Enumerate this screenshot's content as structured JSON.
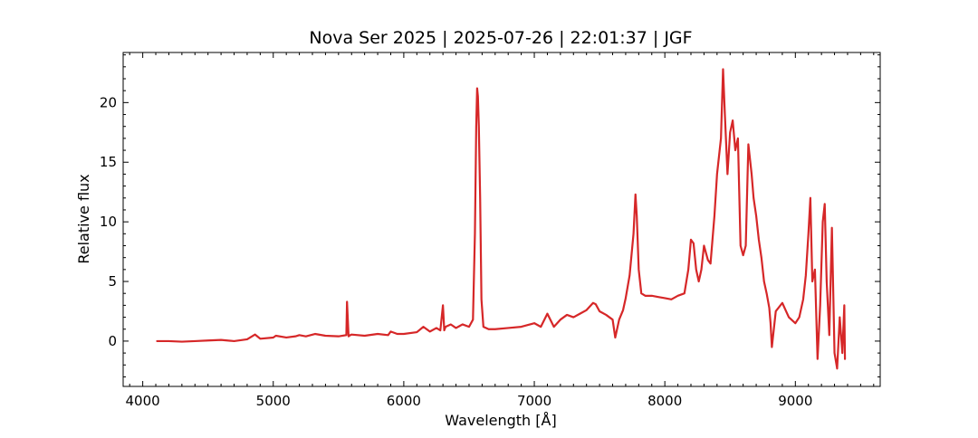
{
  "chart_data": {
    "type": "line",
    "title": "Nova Ser 2025 | 2025-07-26 | 22:01:37 | JGF",
    "xlabel": "Wavelength [Å]",
    "ylabel": "Relative flux",
    "xlim": [
      3850,
      9650
    ],
    "ylim": [
      -3.8,
      24.2
    ],
    "xticks": [
      4000,
      5000,
      6000,
      7000,
      8000,
      9000
    ],
    "yticks": [
      0,
      5,
      10,
      15,
      20
    ],
    "xtick_labels": [
      "4000",
      "5000",
      "6000",
      "7000",
      "8000",
      "9000"
    ],
    "ytick_labels": [
      "0",
      "5",
      "10",
      "15",
      "20"
    ],
    "grid": false,
    "series": [
      {
        "color": "#d62728",
        "x": [
          4110,
          4200,
          4300,
          4400,
          4500,
          4600,
          4700,
          4800,
          4860,
          4900,
          5000,
          5020,
          5100,
          5170,
          5200,
          5250,
          5320,
          5400,
          5500,
          5560,
          5565,
          5577,
          5590,
          5600,
          5700,
          5800,
          5880,
          5900,
          5950,
          6000,
          6100,
          6150,
          6200,
          6250,
          6280,
          6300,
          6310,
          6320,
          6360,
          6400,
          6450,
          6500,
          6530,
          6545,
          6555,
          6562,
          6568,
          6575,
          6585,
          6595,
          6610,
          6650,
          6700,
          6800,
          6900,
          7000,
          7050,
          7100,
          7150,
          7200,
          7250,
          7300,
          7350,
          7400,
          7450,
          7470,
          7500,
          7550,
          7600,
          7620,
          7650,
          7680,
          7700,
          7730,
          7760,
          7775,
          7785,
          7800,
          7820,
          7850,
          7900,
          7950,
          8000,
          8050,
          8100,
          8150,
          8180,
          8200,
          8220,
          8240,
          8260,
          8280,
          8300,
          8330,
          8350,
          8380,
          8400,
          8430,
          8446,
          8460,
          8480,
          8500,
          8520,
          8540,
          8560,
          8580,
          8600,
          8620,
          8640,
          8665,
          8680,
          8700,
          8720,
          8740,
          8760,
          8780,
          8800,
          8810,
          8820,
          8850,
          8900,
          8950,
          9000,
          9030,
          9060,
          9080,
          9100,
          9115,
          9130,
          9150,
          9170,
          9190,
          9210,
          9225,
          9240,
          9260,
          9280,
          9300,
          9320,
          9340,
          9360,
          9375,
          9380
        ],
        "y": [
          0.0,
          0.0,
          -0.05,
          0.0,
          0.05,
          0.1,
          0.0,
          0.15,
          0.55,
          0.2,
          0.3,
          0.45,
          0.3,
          0.4,
          0.5,
          0.4,
          0.6,
          0.45,
          0.4,
          0.5,
          3.3,
          0.4,
          0.5,
          0.55,
          0.45,
          0.6,
          0.5,
          0.8,
          0.6,
          0.6,
          0.75,
          1.2,
          0.8,
          1.1,
          0.9,
          3.0,
          0.9,
          1.2,
          1.4,
          1.1,
          1.4,
          1.2,
          1.8,
          9.0,
          18.0,
          21.2,
          20.5,
          18.0,
          12.0,
          3.5,
          1.2,
          1.0,
          1.0,
          1.1,
          1.2,
          1.5,
          1.2,
          2.3,
          1.2,
          1.8,
          2.2,
          2.0,
          2.3,
          2.6,
          3.2,
          3.1,
          2.5,
          2.2,
          1.8,
          0.3,
          1.8,
          2.6,
          3.6,
          5.5,
          9.0,
          12.3,
          10.5,
          6.0,
          4.0,
          3.8,
          3.8,
          3.7,
          3.6,
          3.5,
          3.8,
          4.0,
          6.0,
          8.5,
          8.2,
          6.0,
          5.0,
          6.0,
          8.0,
          6.8,
          6.5,
          10.5,
          14.0,
          17.0,
          22.8,
          19.0,
          14.0,
          17.5,
          18.5,
          16.0,
          17.0,
          8.0,
          7.2,
          8.0,
          16.5,
          14.0,
          12.0,
          10.5,
          8.5,
          7.0,
          5.0,
          4.0,
          2.8,
          1.5,
          -0.5,
          2.5,
          3.2,
          2.0,
          1.5,
          2.0,
          3.5,
          5.5,
          9.0,
          12.0,
          5.0,
          6.0,
          -1.5,
          3.0,
          10.0,
          11.5,
          5.0,
          0.5,
          9.5,
          -1.0,
          -2.3,
          2.0,
          -1.0,
          3.0,
          -1.5
        ]
      }
    ]
  }
}
